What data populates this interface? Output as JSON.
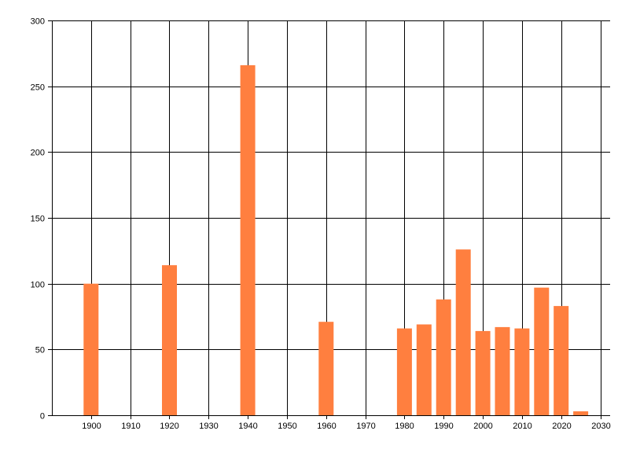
{
  "chart_data": {
    "type": "bar",
    "title": "",
    "xlabel": "",
    "ylabel": "",
    "xlim": [
      1890,
      2032.5
    ],
    "ylim": [
      0,
      300
    ],
    "x_ticks": [
      1900,
      1910,
      1920,
      1930,
      1940,
      1950,
      1960,
      1970,
      1980,
      1990,
      2000,
      2010,
      2020,
      2030
    ],
    "y_ticks": [
      0,
      50,
      100,
      150,
      200,
      250,
      300
    ],
    "grid": true,
    "legend": "none",
    "bar_color": "#ff7f3f",
    "grid_color": "#000000",
    "points": [
      {
        "x": 1900,
        "y": 100
      },
      {
        "x": 1920,
        "y": 114
      },
      {
        "x": 1940,
        "y": 266
      },
      {
        "x": 1960,
        "y": 71
      },
      {
        "x": 1980,
        "y": 66
      },
      {
        "x": 1985,
        "y": 69
      },
      {
        "x": 1990,
        "y": 88
      },
      {
        "x": 1995,
        "y": 126
      },
      {
        "x": 2000,
        "y": 64
      },
      {
        "x": 2005,
        "y": 67
      },
      {
        "x": 2010,
        "y": 66
      },
      {
        "x": 2015,
        "y": 97
      },
      {
        "x": 2020,
        "y": 83
      },
      {
        "x": 2025,
        "y": 3
      }
    ]
  }
}
